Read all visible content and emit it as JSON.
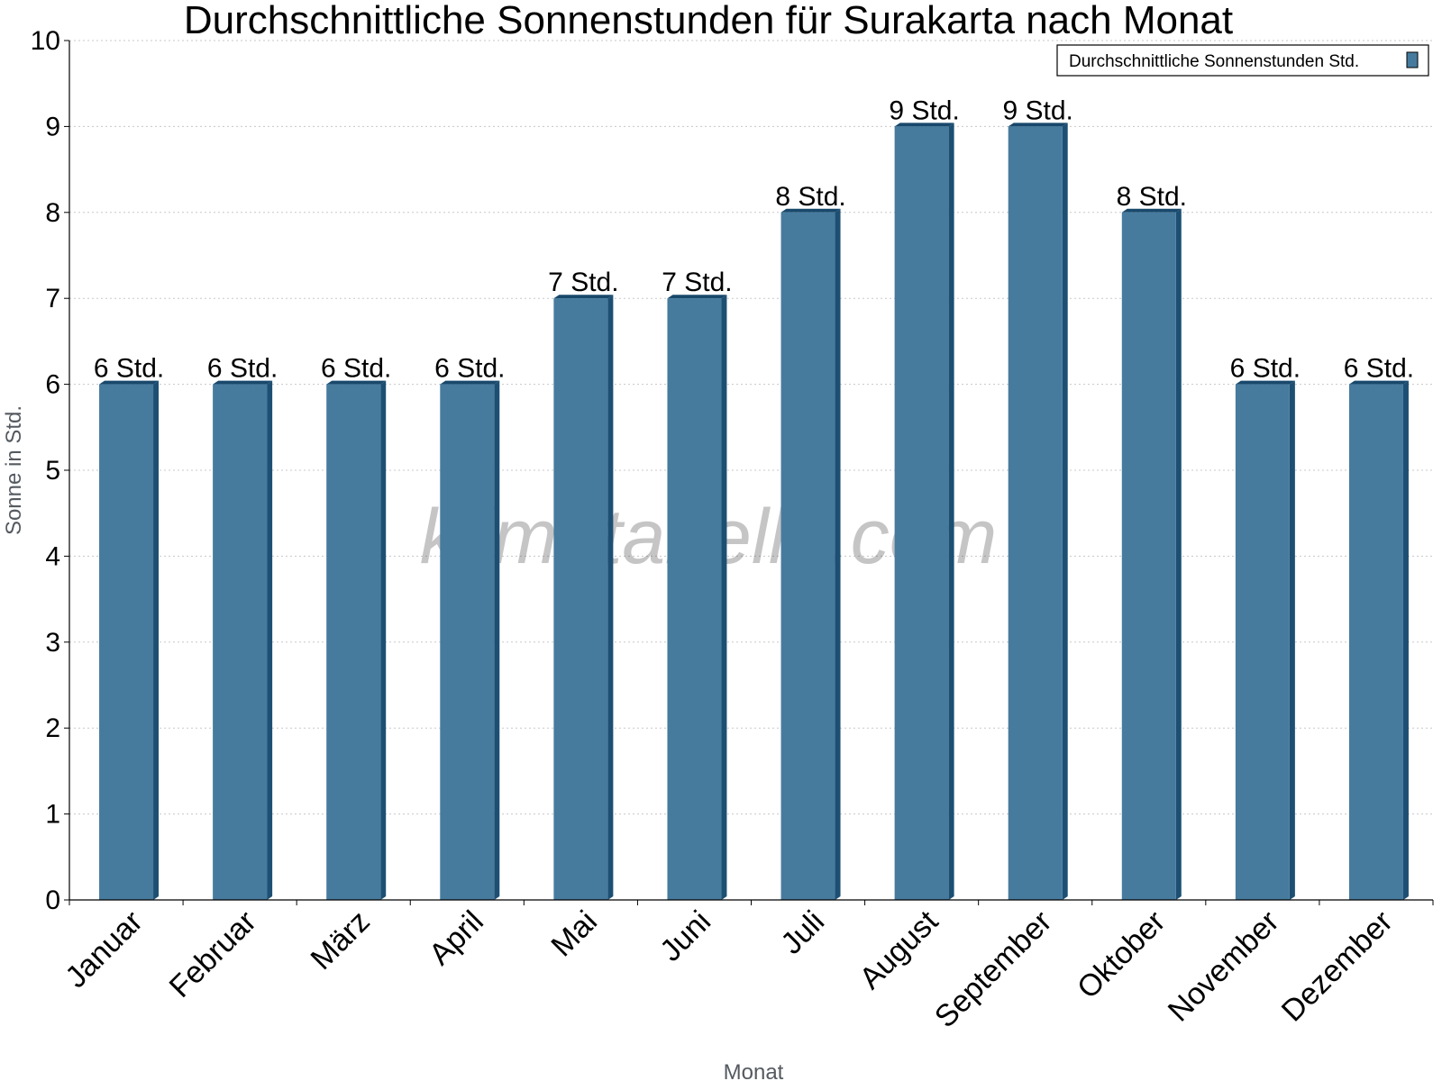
{
  "chart_data": {
    "type": "bar",
    "title": "Durchschnittliche Sonnenstunden für Surakarta nach Monat",
    "xlabel": "Monat",
    "ylabel": "Sonne in Std.",
    "categories": [
      "Januar",
      "Februar",
      "März",
      "April",
      "Mai",
      "Juni",
      "Juli",
      "August",
      "September",
      "Oktober",
      "November",
      "Dezember"
    ],
    "series": [
      {
        "name": "Durchschnittliche Sonnenstunden Std.",
        "values": [
          6,
          6,
          6,
          6,
          7,
          7,
          8,
          9,
          9,
          8,
          6,
          6
        ],
        "labels": [
          "6 Std.",
          "6 Std.",
          "6 Std.",
          "6 Std.",
          "7 Std.",
          "7 Std.",
          "8 Std.",
          "9 Std.",
          "9 Std.",
          "8 Std.",
          "6 Std.",
          "6 Std."
        ]
      }
    ],
    "ylim": [
      0,
      10
    ],
    "yticks": [
      "0",
      "1",
      "2",
      "3",
      "4",
      "5",
      "6",
      "7",
      "8",
      "9",
      "10"
    ],
    "grid": true,
    "legend_position": "top-right",
    "watermark": "klimatabelle.com",
    "colors": {
      "bar_front": "#467b9e",
      "bar_side": "#1d4f73",
      "bar_top": "#18486b",
      "grid": "#c8c8c8",
      "axis": "#000000"
    }
  }
}
